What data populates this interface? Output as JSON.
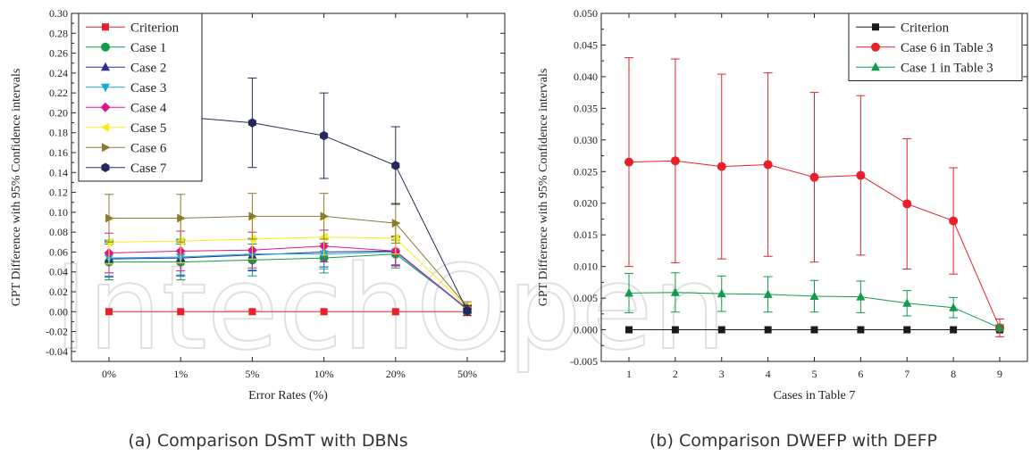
{
  "watermark": "IntechOpen",
  "charts": [
    {
      "caption": "(a) Comparison DSmT with DBNs",
      "chart_data": {
        "type": "line",
        "xlabel": "Error Rates (%)",
        "ylabel": "GPT Difference with 95% Confidence intervals",
        "categories": [
          "0%",
          "1%",
          "5%",
          "10%",
          "20%",
          "50%"
        ],
        "ylim": [
          -0.05,
          0.3
        ],
        "yticks": [
          -0.04,
          -0.02,
          0.0,
          0.02,
          0.04,
          0.06,
          0.08,
          0.1,
          0.12,
          0.14,
          0.16,
          0.18,
          0.2,
          0.22,
          0.24,
          0.26,
          0.28,
          0.3
        ],
        "ytick_labels": [
          "-0.04",
          "-0.02",
          "0.00",
          "0.02",
          "0.04",
          "0.06",
          "0.08",
          "0.10",
          "0.12",
          "0.14",
          "0.16",
          "0.18",
          "0.20",
          "0.22",
          "0.24",
          "0.26",
          "0.28",
          "0.30"
        ],
        "legend_position": "top-left",
        "grid": false,
        "series": [
          {
            "name": "Criterion",
            "color": "#e8202a",
            "marker": "square",
            "values": [
              0.0,
              0.0,
              0.0,
              0.0,
              0.0,
              0.0
            ],
            "errors": [
              0,
              0,
              0,
              0,
              0,
              0
            ]
          },
          {
            "name": "Case 1",
            "color": "#149a4a",
            "marker": "circle",
            "values": [
              0.05,
              0.05,
              0.052,
              0.054,
              0.058,
              0.003
            ],
            "errors": [
              0.018,
              0.018,
              0.016,
              0.015,
              0.014,
              0.004
            ]
          },
          {
            "name": "Case 2",
            "color": "#2b2f8f",
            "marker": "triangle-up",
            "values": [
              0.053,
              0.054,
              0.057,
              0.06,
              0.061,
              0.002
            ],
            "errors": [
              0.018,
              0.018,
              0.016,
              0.015,
              0.014,
              0.004
            ]
          },
          {
            "name": "Case 3",
            "color": "#19a9dc",
            "marker": "triangle-down",
            "values": [
              0.054,
              0.055,
              0.058,
              0.058,
              0.06,
              0.002
            ],
            "errors": [
              0.018,
              0.018,
              0.016,
              0.015,
              0.014,
              0.004
            ]
          },
          {
            "name": "Case 4",
            "color": "#e0148c",
            "marker": "diamond",
            "values": [
              0.059,
              0.061,
              0.062,
              0.066,
              0.061,
              0.003
            ],
            "errors": [
              0.02,
              0.02,
              0.018,
              0.016,
              0.015,
              0.004
            ]
          },
          {
            "name": "Case 5",
            "color": "#f3ee16",
            "marker": "triangle-left",
            "values": [
              0.07,
              0.071,
              0.073,
              0.075,
              0.074,
              0.004
            ],
            "errors": [
              0.022,
              0.022,
              0.02,
              0.018,
              0.016,
              0.004
            ]
          },
          {
            "name": "Case 6",
            "color": "#8c7a32",
            "marker": "triangle-right",
            "values": [
              0.094,
              0.094,
              0.096,
              0.096,
              0.089,
              0.005
            ],
            "errors": [
              0.024,
              0.024,
              0.023,
              0.023,
              0.02,
              0.005
            ]
          },
          {
            "name": "Case 7",
            "color": "#27285a",
            "marker": "hexagon",
            "values": [
              0.196,
              0.196,
              0.19,
              0.177,
              0.147,
              0.001
            ],
            "errors": [
              0.0,
              0.0,
              0.045,
              0.043,
              0.039,
              0.005
            ]
          }
        ]
      }
    },
    {
      "caption": "(b) Comparison DWEFP with DEFP",
      "chart_data": {
        "type": "line",
        "xlabel": "Cases in Table 7",
        "ylabel": "GPT Difference with 95% Confidence intervals",
        "categories": [
          "1",
          "2",
          "3",
          "4",
          "5",
          "6",
          "7",
          "8",
          "9"
        ],
        "ylim": [
          -0.005,
          0.05
        ],
        "yticks": [
          -0.005,
          0.0,
          0.005,
          0.01,
          0.015,
          0.02,
          0.025,
          0.03,
          0.035,
          0.04,
          0.045,
          0.05
        ],
        "ytick_labels": [
          "-0.005",
          "0.000",
          "0.005",
          "0.010",
          "0.015",
          "0.020",
          "0.025",
          "0.030",
          "0.035",
          "0.040",
          "0.045",
          "0.050"
        ],
        "legend_position": "top-right",
        "grid": false,
        "series": [
          {
            "name": "Criterion",
            "color": "#1a1a1a",
            "marker": "square",
            "values": [
              0,
              0,
              0,
              0,
              0,
              0,
              0,
              0,
              0
            ],
            "errors": [
              0,
              0,
              0,
              0,
              0,
              0,
              0,
              0,
              0
            ]
          },
          {
            "name": "Case 6 in Table 3",
            "color": "#e8202a",
            "marker": "circle",
            "values": [
              0.0265,
              0.0267,
              0.0258,
              0.0261,
              0.0241,
              0.0244,
              0.0199,
              0.0172,
              0.0003
            ],
            "errors": [
              0.0165,
              0.0161,
              0.0146,
              0.0145,
              0.0134,
              0.0126,
              0.0103,
              0.0084,
              0.0014
            ]
          },
          {
            "name": "Case 1 in Table 3",
            "color": "#149a4a",
            "marker": "triangle-up",
            "values": [
              0.0058,
              0.0059,
              0.0057,
              0.0056,
              0.0053,
              0.0052,
              0.0042,
              0.0035,
              0.0003
            ],
            "errors": [
              0.0031,
              0.0031,
              0.0028,
              0.0028,
              0.0025,
              0.0025,
              0.002,
              0.0016,
              0.0005
            ]
          }
        ]
      }
    }
  ]
}
